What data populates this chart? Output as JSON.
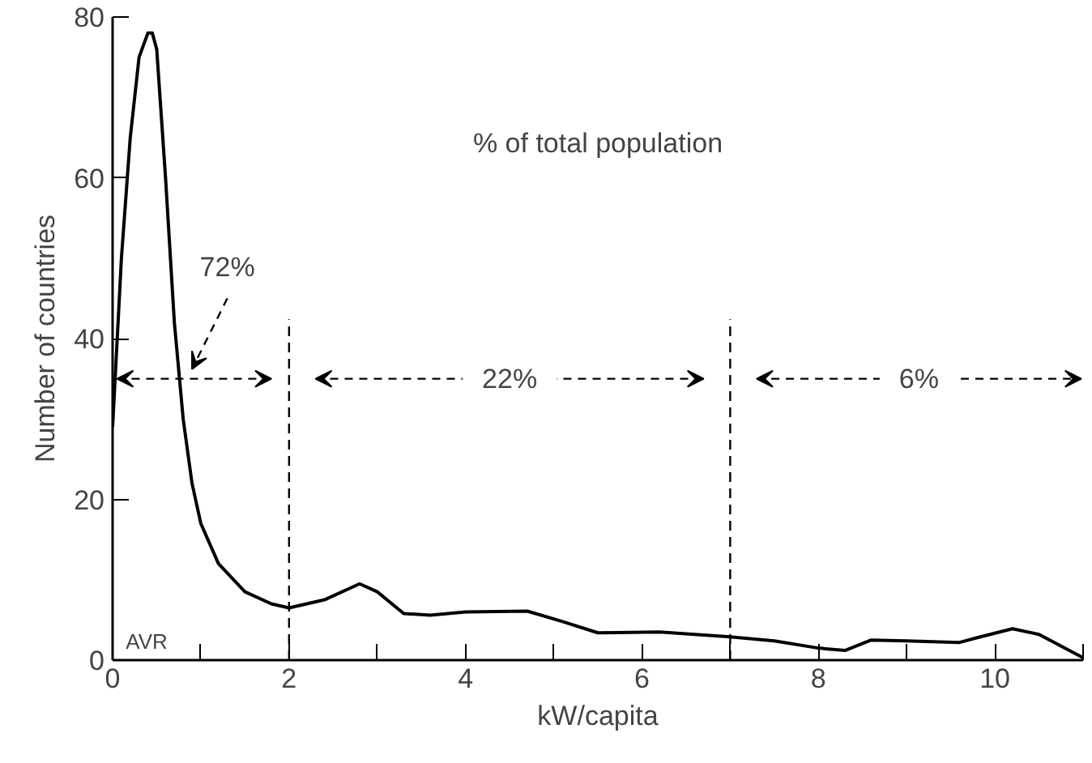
{
  "chart_data": {
    "type": "line",
    "xlabel": "kW/capita",
    "ylabel": "Number of countries",
    "x": [
      0,
      0.1,
      0.2,
      0.3,
      0.4,
      0.45,
      0.5,
      0.6,
      0.7,
      0.8,
      0.9,
      1.0,
      1.2,
      1.5,
      1.8,
      2.0,
      2.4,
      2.8,
      3.0,
      3.3,
      3.6,
      4.0,
      4.7,
      5.1,
      5.5,
      6.2,
      7.0,
      7.5,
      8.0,
      8.3,
      8.6,
      9.0,
      9.6,
      9.8,
      10.2,
      10.5,
      11.0
    ],
    "series": [
      {
        "color": "#000000",
        "values": [
          29,
          50,
          65,
          75,
          78,
          78,
          76,
          60,
          42,
          30,
          22,
          17,
          12,
          8.5,
          7,
          6.5,
          7.5,
          9.5,
          8.5,
          5.8,
          5.6,
          6,
          6.1,
          4.8,
          3.4,
          3.5,
          2.9,
          2.4,
          1.5,
          1.2,
          2.5,
          2.4,
          2.2,
          2.8,
          3.9,
          3.2,
          0.3
        ]
      }
    ],
    "xlim": [
      0,
      11
    ],
    "ylim": [
      0,
      80
    ],
    "xticks": [
      0,
      {
        "value": 1,
        "label": null
      },
      2,
      {
        "value": 3,
        "label": null
      },
      4,
      {
        "value": 5,
        "label": null
      },
      6,
      {
        "value": 7,
        "label": null
      },
      8,
      {
        "value": 9,
        "label": null
      },
      10,
      {
        "value": 11,
        "label": null
      }
    ],
    "yticks": [
      0,
      20,
      40,
      60,
      80
    ],
    "ref_lines": [
      {
        "axis": "x",
        "value": 2,
        "line_style": "dashed"
      },
      {
        "axis": "x",
        "value": 7,
        "line_style": "dashed"
      }
    ],
    "annotations": [
      "% of total population",
      "72%",
      "22%",
      "6%",
      "AVR"
    ],
    "marker": "none",
    "line_style": "solid"
  }
}
